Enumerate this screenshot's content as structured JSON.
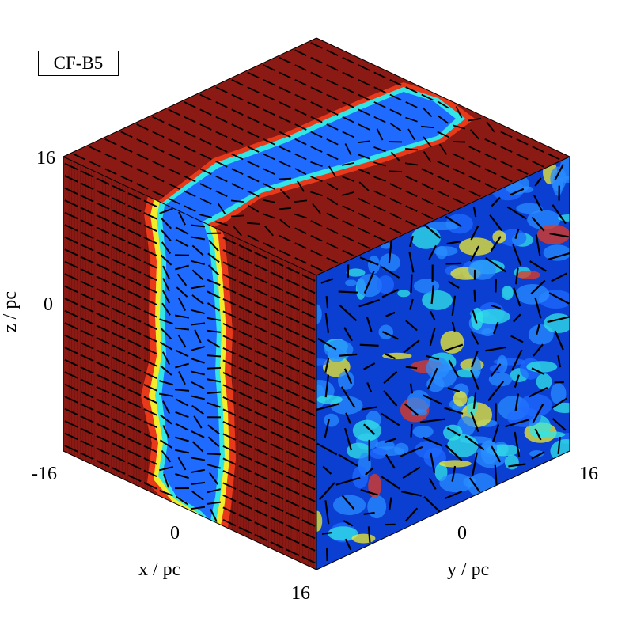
{
  "figure": {
    "panel_label": "CF-B5",
    "axes": {
      "z": {
        "label": "z / pc",
        "ticks": [
          "16",
          "0",
          "-16"
        ]
      },
      "x": {
        "label": "x / pc",
        "ticks": [
          "0",
          "16"
        ]
      },
      "y": {
        "label": "y / pc",
        "ticks": [
          "0",
          "16"
        ]
      }
    },
    "colors": {
      "background_high": "#8b1a14",
      "field_low": "#0b3fd1",
      "field_mid": "#2a8cff",
      "field_cyan": "#32e6e6",
      "field_yellow": "#f2ec2a",
      "field_red": "#e83a1a",
      "vector": "#000000"
    }
  }
}
